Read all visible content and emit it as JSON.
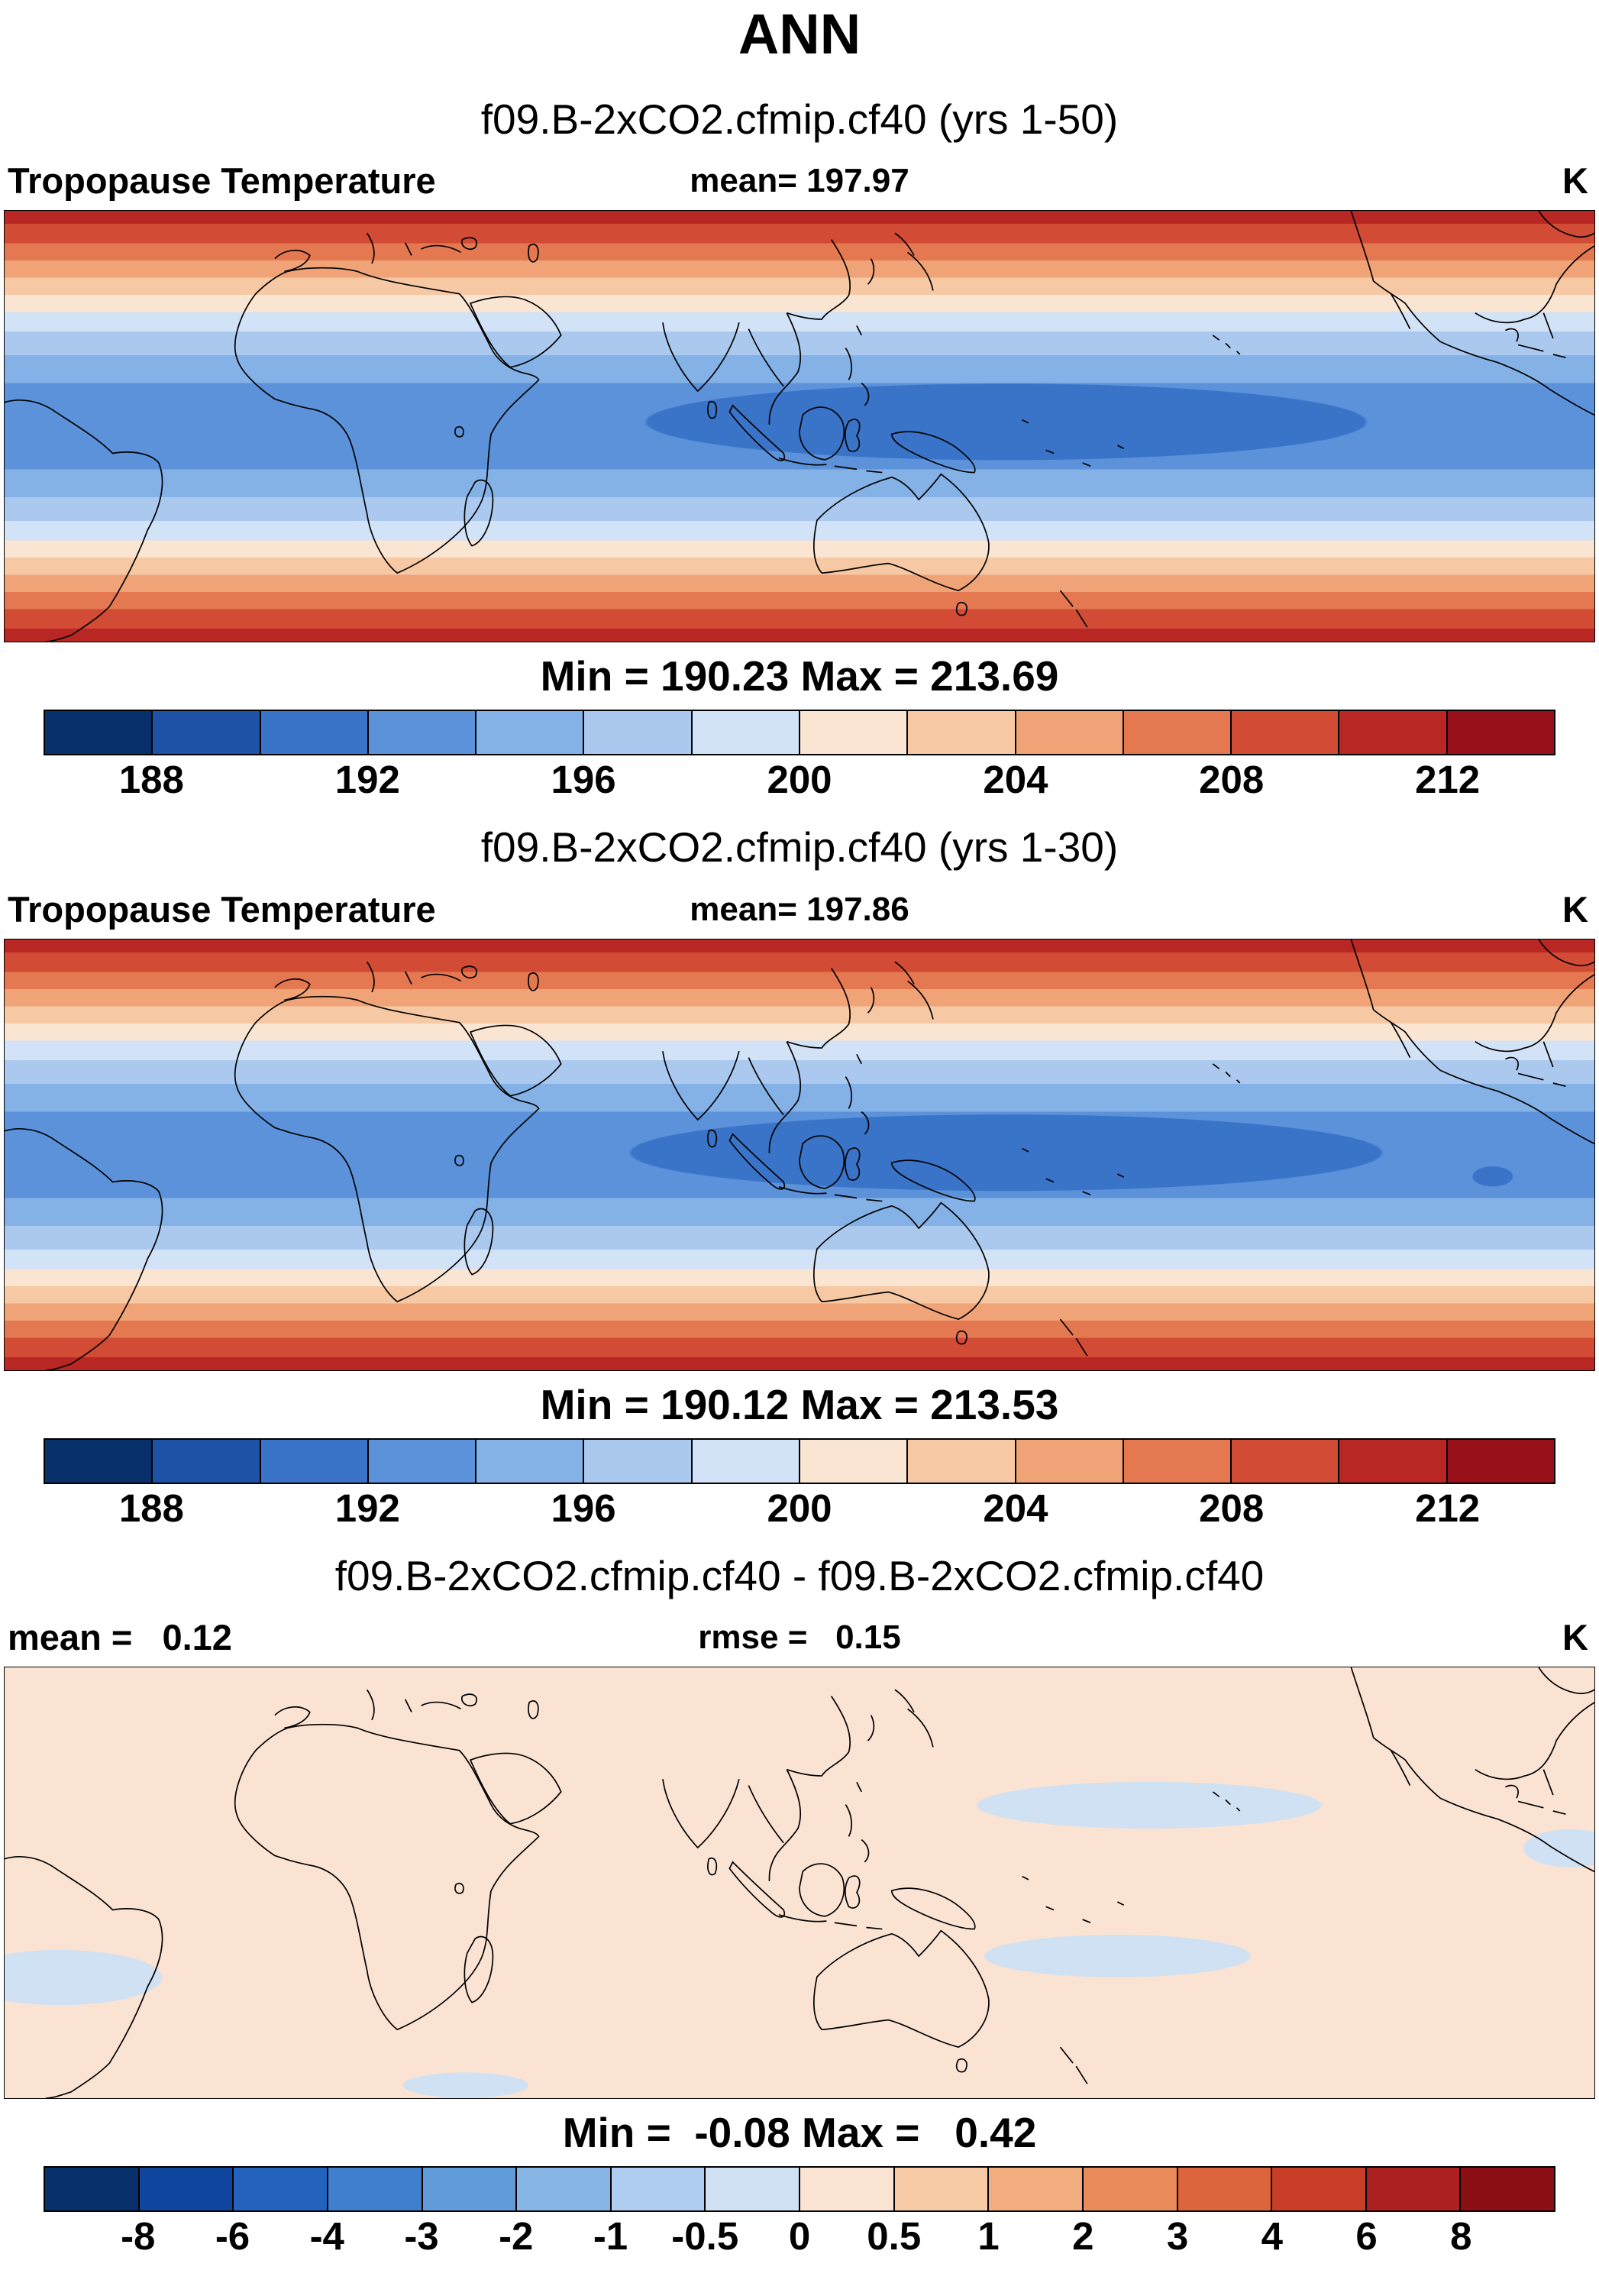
{
  "page": {
    "title": "ANN"
  },
  "panel1": {
    "subtitle": "f09.B-2xCO2.cfmip.cf40 (yrs 1-50)",
    "var_label": "Tropopause Temperature",
    "mean_label": "mean= 197.97",
    "unit": "K",
    "minmax": "Min = 190.23 Max = 213.69"
  },
  "panel2": {
    "subtitle": "f09.B-2xCO2.cfmip.cf40 (yrs 1-30)",
    "var_label": "Tropopause Temperature",
    "mean_label": "mean= 197.86",
    "unit": "K",
    "minmax": "Min = 190.12 Max = 213.53"
  },
  "panel3": {
    "title": "f09.B-2xCO2.cfmip.cf40 - f09.B-2xCO2.cfmip.cf40",
    "mean_label": "mean =   0.12",
    "rmse_label": "rmse =   0.15",
    "unit": "K",
    "minmax": "Min =  -0.08 Max =   0.42"
  },
  "temp_colorbar": {
    "colors": [
      "#08306b",
      "#1d52a6",
      "#3a74c9",
      "#5b92da",
      "#84b1e6",
      "#abc9ef",
      "#d2e2f7",
      "#fae5d3",
      "#f6c8a4",
      "#f0a377",
      "#e47851",
      "#d24b34",
      "#b82723",
      "#97101a"
    ],
    "ticks": [
      {
        "label": "188",
        "pos": "7.14%"
      },
      {
        "label": "192",
        "pos": "21.43%"
      },
      {
        "label": "196",
        "pos": "35.71%"
      },
      {
        "label": "200",
        "pos": "50%"
      },
      {
        "label": "204",
        "pos": "64.29%"
      },
      {
        "label": "208",
        "pos": "78.57%"
      },
      {
        "label": "212",
        "pos": "92.86%"
      }
    ]
  },
  "diff_colorbar": {
    "colors": [
      "#08306b",
      "#10459e",
      "#2463bd",
      "#3f7fcd",
      "#619bda",
      "#87b5e6",
      "#aecdf0",
      "#cfe1f2",
      "#fbe3d4",
      "#f7cba6",
      "#f2ad7e",
      "#e98b5a",
      "#dc653e",
      "#c93e28",
      "#ac2020",
      "#8c0e15"
    ],
    "ticks": [
      {
        "label": "-8",
        "pos": "6.25%"
      },
      {
        "label": "-6",
        "pos": "12.5%"
      },
      {
        "label": "-4",
        "pos": "18.75%"
      },
      {
        "label": "-3",
        "pos": "25%"
      },
      {
        "label": "-2",
        "pos": "31.25%"
      },
      {
        "label": "-1",
        "pos": "37.5%"
      },
      {
        "label": "-0.5",
        "pos": "43.75%"
      },
      {
        "label": "0",
        "pos": "50%"
      },
      {
        "label": "0.5",
        "pos": "56.25%"
      },
      {
        "label": "1",
        "pos": "62.5%"
      },
      {
        "label": "2",
        "pos": "68.75%"
      },
      {
        "label": "3",
        "pos": "75%"
      },
      {
        "label": "4",
        "pos": "81.25%"
      },
      {
        "label": "6",
        "pos": "87.5%"
      },
      {
        "label": "8",
        "pos": "93.75%"
      }
    ]
  },
  "chart_data": [
    {
      "type": "heatmap",
      "panel": 1,
      "title": "f09.B-2xCO2.cfmip.cf40 (yrs 1-50)",
      "variable": "Tropopause Temperature",
      "units": "K",
      "stats": {
        "mean": 197.97,
        "min": 190.23,
        "max": 213.69
      },
      "contour_levels": [
        186,
        188,
        190,
        192,
        194,
        196,
        198,
        200,
        202,
        204,
        206,
        208,
        210,
        212,
        214
      ],
      "colorbar_tick_labels": [
        "188",
        "192",
        "196",
        "200",
        "204",
        "208",
        "212"
      ],
      "palette": [
        "#08306b",
        "#1d52a6",
        "#3a74c9",
        "#5b92da",
        "#84b1e6",
        "#abc9ef",
        "#d2e2f7",
        "#fae5d3",
        "#f6c8a4",
        "#f0a377",
        "#e47851",
        "#d24b34",
        "#b82723",
        "#97101a"
      ],
      "projection": "global cylindrical map with coastlines",
      "spatial_pattern": "Warm (~208-214 K, red) at high latitudes north and south; cold (~190-196 K, blue) across the tropics; coldest closed contour (190-192 K) elongated over the Indo-Pacific warm pool"
    },
    {
      "type": "heatmap",
      "panel": 2,
      "title": "f09.B-2xCO2.cfmip.cf40 (yrs 1-30)",
      "variable": "Tropopause Temperature",
      "units": "K",
      "stats": {
        "mean": 197.86,
        "min": 190.12,
        "max": 213.53
      },
      "contour_levels": [
        186,
        188,
        190,
        192,
        194,
        196,
        198,
        200,
        202,
        204,
        206,
        208,
        210,
        212,
        214
      ],
      "colorbar_tick_labels": [
        "188",
        "192",
        "196",
        "200",
        "204",
        "208",
        "212"
      ],
      "palette": [
        "#08306b",
        "#1d52a6",
        "#3a74c9",
        "#5b92da",
        "#84b1e6",
        "#abc9ef",
        "#d2e2f7",
        "#fae5d3",
        "#f6c8a4",
        "#f0a377",
        "#e47851",
        "#d24b34",
        "#b82723",
        "#97101a"
      ],
      "projection": "global cylindrical map with coastlines",
      "spatial_pattern": "Nearly identical to panel 1: warm tropopause at high latitudes, cold over tropics with 190-192 K core over Indo-Pacific; extra small cold spot near eastern Pacific"
    },
    {
      "type": "heatmap",
      "panel": 3,
      "title": "f09.B-2xCO2.cfmip.cf40 - f09.B-2xCO2.cfmip.cf40",
      "variable": "Tropopause Temperature difference",
      "units": "K",
      "stats": {
        "mean": 0.12,
        "rmse": 0.15,
        "min": -0.08,
        "max": 0.42
      },
      "contour_levels": [
        -8,
        -6,
        -4,
        -3,
        -2,
        -1,
        -0.5,
        0,
        0.5,
        1,
        2,
        3,
        4,
        6,
        8
      ],
      "colorbar_tick_labels": [
        "-8",
        "-6",
        "-4",
        "-3",
        "-2",
        "-1",
        "-0.5",
        "0",
        "0.5",
        "1",
        "2",
        "3",
        "4",
        "6",
        "8"
      ],
      "palette": [
        "#08306b",
        "#10459e",
        "#2463bd",
        "#3f7fcd",
        "#619bda",
        "#87b5e6",
        "#aecdf0",
        "#cfe1f2",
        "#fbe3d4",
        "#f7cba6",
        "#f2ad7e",
        "#e98b5a",
        "#dc653e",
        "#c93e28",
        "#ac2020",
        "#8c0e15"
      ],
      "projection": "global cylindrical map with coastlines",
      "spatial_pattern": "Difference field almost everywhere in the 0 to +0.5 K bin (light cream); scattered -0.5 to 0 K patches (light blue) over the central equatorial Pacific, the South Pacific, southern South America and near the far-east Pacific edge"
    }
  ]
}
